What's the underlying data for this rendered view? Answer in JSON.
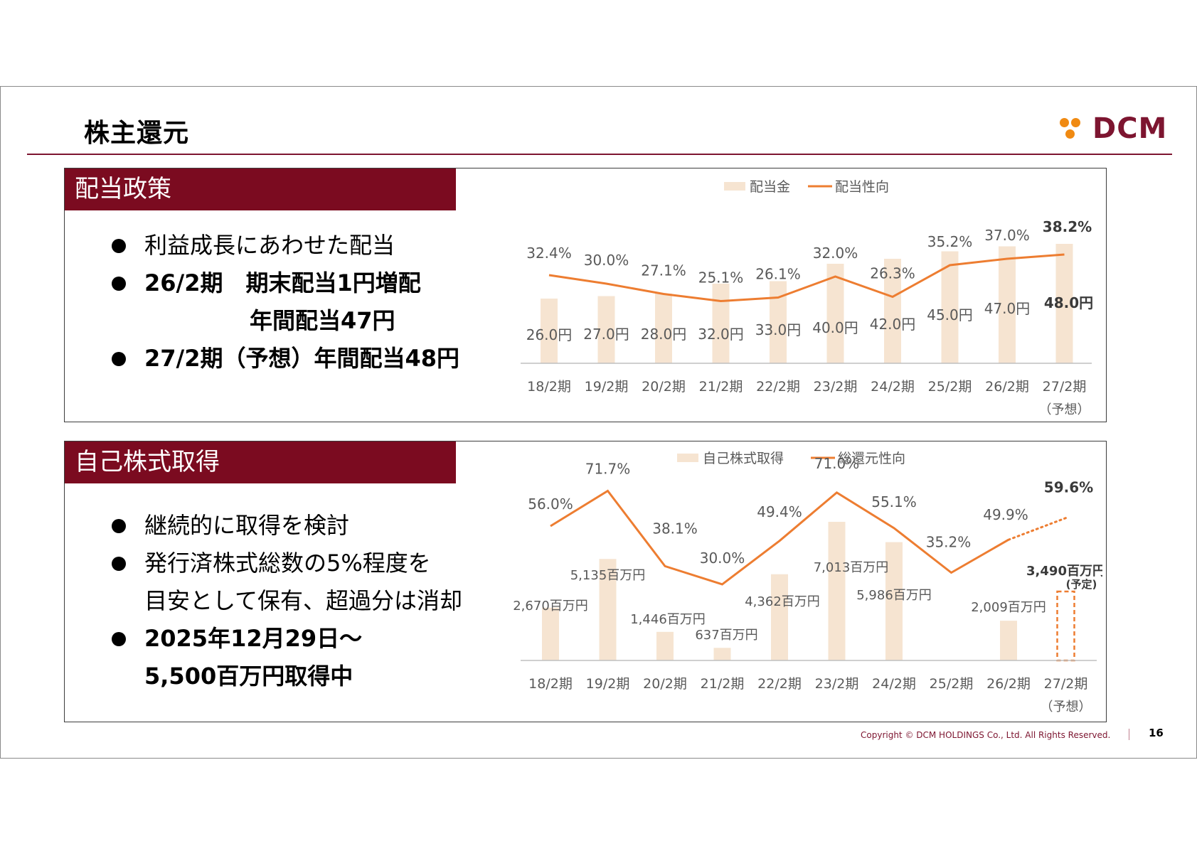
{
  "title": "株主還元",
  "logo": {
    "text": "DCM"
  },
  "dividend": {
    "head": "配当政策",
    "bullets": [
      {
        "text": "利益成長にあわせた配当",
        "sub": "",
        "bold": false
      },
      {
        "text": "26/2期　期末配当1円増配",
        "sub": "年間配当47円",
        "bold": true
      },
      {
        "text": "27/2期（予想）年間配当48円",
        "sub": "",
        "bold": true
      }
    ],
    "legend_bar": "配当金",
    "legend_line": "配当性向",
    "categories": [
      "18/2期",
      "19/2期",
      "20/2期",
      "21/2期",
      "22/2期",
      "23/2期",
      "24/2期",
      "25/2期",
      "26/2期",
      "27/2期"
    ],
    "last_note": "（予想）",
    "bar_labels": [
      "26.0円",
      "27.0円",
      "28.0円",
      "32.0円",
      "33.0円",
      "40.0円",
      "42.0円",
      "45.0円",
      "47.0円",
      "48.0円"
    ],
    "line_labels": [
      "32.4%",
      "30.0%",
      "27.1%",
      "25.1%",
      "26.1%",
      "32.0%",
      "26.3%",
      "35.2%",
      "37.0%",
      "38.2%"
    ]
  },
  "buyback": {
    "head": "自己株式取得",
    "bullets": [
      {
        "text": "継続的に取得を検討",
        "sub": "",
        "bold": false
      },
      {
        "text": "発行済株式総数の5%程度を",
        "sub": "目安として保有、超過分は消却",
        "bold": false
      },
      {
        "text": "2025年12月29日～",
        "sub": "5,500百万円取得中",
        "bold": true
      }
    ],
    "legend_bar": "自己株式取得",
    "legend_line": "総還元性向",
    "categories": [
      "18/2期",
      "19/2期",
      "20/2期",
      "21/2期",
      "22/2期",
      "23/2期",
      "24/2期",
      "25/2期",
      "26/2期",
      "27/2期"
    ],
    "last_note": "（予想）",
    "bar_labels": [
      "2,670百万円",
      "5,135百万円",
      "1,446百万円",
      "637百万円",
      "4,362百万円",
      "7,013百万円",
      "5,986百万円",
      "",
      "2,009百万円",
      "3,490百万円"
    ],
    "planned_note": "(予定)",
    "line_labels": [
      "56.0%",
      "71.7%",
      "38.1%",
      "30.0%",
      "49.4%",
      "71.0%",
      "55.1%",
      "35.2%",
      "49.9%",
      "59.6%"
    ]
  },
  "chart_data": [
    {
      "type": "bar",
      "categories": [
        "18/2期",
        "19/2期",
        "20/2期",
        "21/2期",
        "22/2期",
        "23/2期",
        "24/2期",
        "25/2期",
        "26/2期",
        "27/2期（予想）"
      ],
      "series": [
        {
          "name": "配当金",
          "type": "bar",
          "unit": "円",
          "values": [
            26.0,
            27.0,
            28.0,
            32.0,
            33.0,
            40.0,
            42.0,
            45.0,
            47.0,
            48.0
          ]
        },
        {
          "name": "配当性向",
          "type": "line",
          "unit": "%",
          "values": [
            32.4,
            30.0,
            27.1,
            25.1,
            26.1,
            32.0,
            26.3,
            35.2,
            37.0,
            38.2
          ]
        }
      ],
      "legend": "top",
      "grid": false,
      "colors": {
        "bar": "#f6e4d1",
        "line": "#ed7d31"
      }
    },
    {
      "type": "bar",
      "categories": [
        "18/2期",
        "19/2期",
        "20/2期",
        "21/2期",
        "22/2期",
        "23/2期",
        "24/2期",
        "25/2期",
        "26/2期",
        "27/2期（予想）"
      ],
      "series": [
        {
          "name": "自己株式取得",
          "type": "bar",
          "unit": "百万円",
          "values": [
            2670,
            5135,
            1446,
            637,
            4362,
            7013,
            5986,
            0,
            2009,
            3490
          ]
        },
        {
          "name": "総還元性向",
          "type": "line",
          "unit": "%",
          "values": [
            56.0,
            71.7,
            38.1,
            30.0,
            49.4,
            71.0,
            55.1,
            35.2,
            49.9,
            59.6
          ]
        }
      ],
      "legend": "top",
      "grid": false,
      "colors": {
        "bar": "#f6e4d1",
        "line": "#ed7d31"
      }
    }
  ],
  "footer": {
    "copyright": "Copyright © DCM HOLDINGS Co., Ltd. All Rights Reserved.",
    "page": "16"
  }
}
